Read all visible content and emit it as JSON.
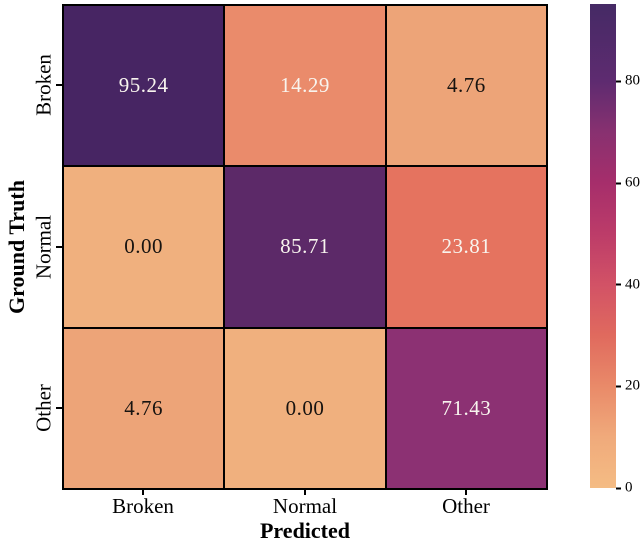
{
  "chart_data": {
    "type": "heatmap",
    "title": "",
    "xlabel": "Predicted",
    "ylabel": "Ground Truth",
    "x_categories": [
      "Broken",
      "Normal",
      "Other"
    ],
    "y_categories": [
      "Broken",
      "Normal",
      "Other"
    ],
    "values": [
      [
        95.24,
        14.29,
        4.76
      ],
      [
        0.0,
        85.71,
        23.81
      ],
      [
        4.76,
        0.0,
        71.43
      ]
    ],
    "cells": [
      {
        "row": "Broken",
        "col": "Broken",
        "text": "95.24",
        "bg": "#472563",
        "fg": "#f8f4ee"
      },
      {
        "row": "Broken",
        "col": "Normal",
        "text": "14.29",
        "bg": "#EA8B6B",
        "fg": "#f8f4ee"
      },
      {
        "row": "Broken",
        "col": "Other",
        "text": "4.76",
        "bg": "#EDA478",
        "fg": "#171310"
      },
      {
        "row": "Normal",
        "col": "Broken",
        "text": "0.00",
        "bg": "#F0B07E",
        "fg": "#171310"
      },
      {
        "row": "Normal",
        "col": "Normal",
        "text": "85.71",
        "bg": "#5C2968",
        "fg": "#f8f4ee"
      },
      {
        "row": "Normal",
        "col": "Other",
        "text": "23.81",
        "bg": "#E5735F",
        "fg": "#f8f4ee"
      },
      {
        "row": "Other",
        "col": "Broken",
        "text": "4.76",
        "bg": "#EDA478",
        "fg": "#171310"
      },
      {
        "row": "Other",
        "col": "Normal",
        "text": "0.00",
        "bg": "#F0B07E",
        "fg": "#171310"
      },
      {
        "row": "Other",
        "col": "Other",
        "text": "71.43",
        "bg": "#8C3173",
        "fg": "#f8f4ee"
      }
    ],
    "grid_color": "#000000",
    "colormap": "flare",
    "legend_position": "right",
    "colorbar": {
      "min": 0,
      "max": 95.24,
      "tick_labels": [
        "0",
        "20",
        "40",
        "60",
        "80"
      ],
      "tick_values": [
        0,
        20,
        40,
        60,
        80
      ],
      "gradient_stops": [
        {
          "pos": 0.0,
          "color": "#F4BC84"
        },
        {
          "pos": 0.105,
          "color": "#F0AA7B"
        },
        {
          "pos": 0.21,
          "color": "#E98A69"
        },
        {
          "pos": 0.315,
          "color": "#E06A5E"
        },
        {
          "pos": 0.42,
          "color": "#D25266"
        },
        {
          "pos": 0.525,
          "color": "#BC3C69"
        },
        {
          "pos": 0.63,
          "color": "#A62E6B"
        },
        {
          "pos": 0.735,
          "color": "#883170"
        },
        {
          "pos": 0.84,
          "color": "#5E2B70"
        },
        {
          "pos": 1.0,
          "color": "#452A65"
        }
      ]
    }
  }
}
